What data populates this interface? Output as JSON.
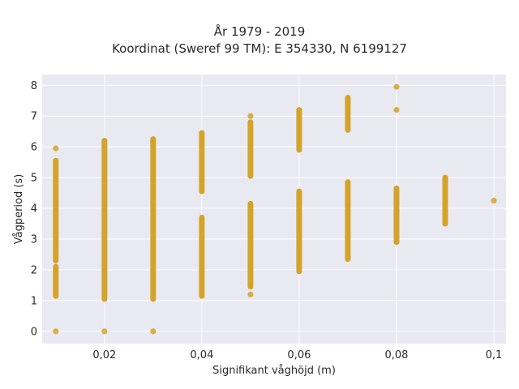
{
  "chart_data": {
    "type": "scatter",
    "title": "År 1979 - 2019",
    "subtitle": "Koordinat (Sweref 99 TM): E 354330, N 6199127",
    "xlabel": "Signifikant våghöjd (m)",
    "ylabel": "Vågperiod (s)",
    "xlim": [
      0.0072,
      0.1025
    ],
    "ylim": [
      -0.4,
      8.35
    ],
    "x_ticks": [
      0.02,
      0.04,
      0.06,
      0.08,
      0.1
    ],
    "x_tick_labels": [
      "0,02",
      "0,04",
      "0,06",
      "0,08",
      "0,1"
    ],
    "y_ticks": [
      0,
      1,
      2,
      3,
      4,
      5,
      6,
      7,
      8
    ],
    "y_tick_labels": [
      "0",
      "1",
      "2",
      "3",
      "4",
      "5",
      "6",
      "7",
      "8"
    ],
    "grid": true,
    "background_color": "#e9e9f2",
    "marker_color": "#d4a32a",
    "points_point": [
      {
        "x": 0.01,
        "y": 5.95
      },
      {
        "x": 0.01,
        "y": 0.0
      },
      {
        "x": 0.02,
        "y": 0.0
      },
      {
        "x": 0.03,
        "y": 0.0
      },
      {
        "x": 0.05,
        "y": 1.2
      },
      {
        "x": 0.05,
        "y": 7.0
      },
      {
        "x": 0.08,
        "y": 7.95
      },
      {
        "x": 0.08,
        "y": 7.2
      },
      {
        "x": 0.1,
        "y": 4.25
      }
    ],
    "points_range": [
      {
        "x": 0.01,
        "y_min": 1.15,
        "y_max": 2.1
      },
      {
        "x": 0.01,
        "y_min": 2.3,
        "y_max": 5.55
      },
      {
        "x": 0.02,
        "y_min": 1.05,
        "y_max": 6.2
      },
      {
        "x": 0.03,
        "y_min": 1.05,
        "y_max": 4.05
      },
      {
        "x": 0.03,
        "y_min": 4.1,
        "y_max": 6.25
      },
      {
        "x": 0.04,
        "y_min": 1.15,
        "y_max": 3.7
      },
      {
        "x": 0.04,
        "y_min": 4.55,
        "y_max": 6.45
      },
      {
        "x": 0.05,
        "y_min": 1.45,
        "y_max": 4.15
      },
      {
        "x": 0.05,
        "y_min": 5.05,
        "y_max": 6.8
      },
      {
        "x": 0.06,
        "y_min": 1.95,
        "y_max": 4.55
      },
      {
        "x": 0.06,
        "y_min": 5.9,
        "y_max": 7.2
      },
      {
        "x": 0.07,
        "y_min": 2.35,
        "y_max": 4.85
      },
      {
        "x": 0.07,
        "y_min": 6.55,
        "y_max": 7.6
      },
      {
        "x": 0.08,
        "y_min": 2.9,
        "y_max": 4.65
      },
      {
        "x": 0.09,
        "y_min": 3.5,
        "y_max": 5.0
      }
    ]
  }
}
